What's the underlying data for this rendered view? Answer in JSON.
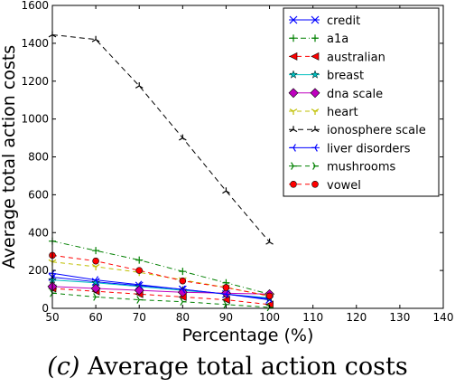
{
  "caption": {
    "label": "(c)",
    "text": "Average total action costs"
  },
  "chart_data": {
    "type": "line",
    "xlabel": "Percentage (%)",
    "ylabel": "Average total action costs",
    "xlim": [
      50,
      140
    ],
    "ylim": [
      0,
      1600
    ],
    "xticks": [
      50,
      60,
      70,
      80,
      90,
      100,
      110,
      120,
      130,
      140
    ],
    "yticks": [
      0,
      200,
      400,
      600,
      800,
      1000,
      1200,
      1400,
      1600
    ],
    "grid": false,
    "legend_position": "top-right",
    "x": [
      50,
      60,
      70,
      80,
      90,
      100
    ],
    "series": [
      {
        "name": "credit",
        "color": "#0000ff",
        "dash": "",
        "marker": "x",
        "values": [
          165,
          140,
          120,
          100,
          75,
          45
        ]
      },
      {
        "name": "a1a",
        "color": "#008000",
        "dash": "6,3,1,3",
        "marker": "plus",
        "values": [
          355,
          305,
          255,
          195,
          135,
          75
        ]
      },
      {
        "name": "australian",
        "color": "#ff0000",
        "dash": "5,4",
        "marker": "triangle-left",
        "values": [
          105,
          90,
          75,
          60,
          45,
          20
        ]
      },
      {
        "name": "breast",
        "color": "#00bfbf",
        "dash": "",
        "marker": "star",
        "values": [
          150,
          135,
          115,
          95,
          75,
          55
        ]
      },
      {
        "name": "dna scale",
        "color": "#bf00bf",
        "dash": "",
        "marker": "diamond",
        "values": [
          115,
          105,
          95,
          85,
          80,
          75
        ]
      },
      {
        "name": "heart",
        "color": "#bfbf00",
        "dash": "5,4",
        "marker": "tri-down",
        "values": [
          245,
          220,
          190,
          150,
          110,
          65
        ]
      },
      {
        "name": "ionosphere scale",
        "color": "#000000",
        "dash": "6,4",
        "marker": "tri-up",
        "values": [
          1445,
          1420,
          1175,
          900,
          620,
          350
        ]
      },
      {
        "name": "liver disorders",
        "color": "#0000ff",
        "dash": "",
        "marker": "tri-left",
        "values": [
          185,
          150,
          125,
          100,
          75,
          50
        ]
      },
      {
        "name": "mushrooms",
        "color": "#008000",
        "dash": "5,4",
        "marker": "tri-right",
        "values": [
          80,
          60,
          45,
          35,
          20,
          5
        ]
      },
      {
        "name": "vowel",
        "color": "#ff0000",
        "dash": "5,4",
        "marker": "circle",
        "values": [
          280,
          250,
          200,
          145,
          110,
          65
        ]
      }
    ]
  }
}
